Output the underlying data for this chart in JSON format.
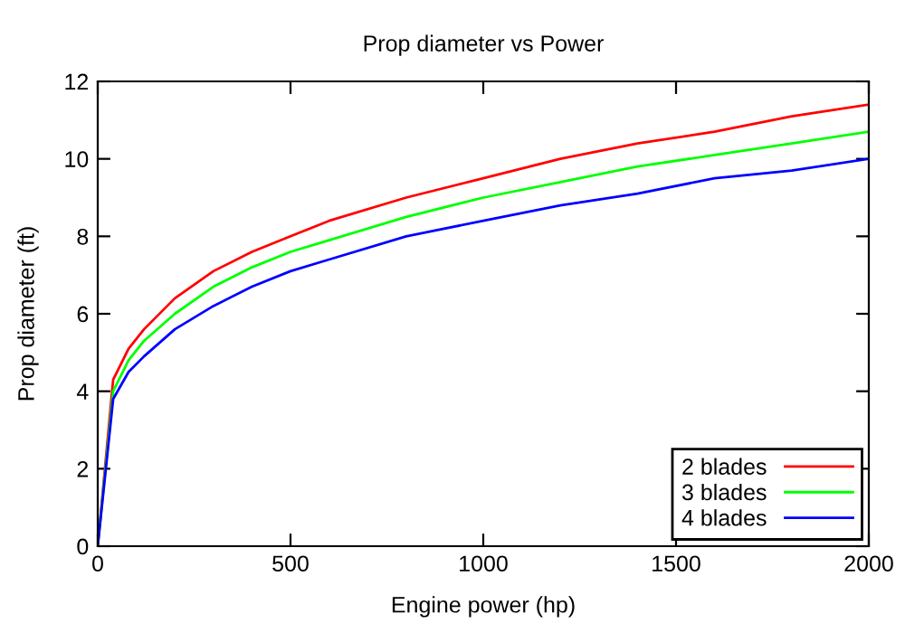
{
  "chart_data": {
    "type": "line",
    "title": "Prop diameter vs Power",
    "xlabel": "Engine power (hp)",
    "ylabel": "Prop diameter (ft)",
    "x": [
      0,
      40,
      80,
      120,
      200,
      300,
      400,
      500,
      600,
      800,
      1000,
      1200,
      1400,
      1600,
      1800,
      2000
    ],
    "series": [
      {
        "name": "2 blades",
        "color": "#ff0000",
        "values": [
          0,
          4.3,
          5.1,
          5.6,
          6.4,
          7.1,
          7.6,
          8.0,
          8.4,
          9.0,
          9.5,
          10.0,
          10.4,
          10.7,
          11.1,
          11.4
        ]
      },
      {
        "name": "3 blades",
        "color": "#00ff00",
        "values": [
          0,
          4.0,
          4.8,
          5.3,
          6.0,
          6.7,
          7.2,
          7.6,
          7.9,
          8.5,
          9.0,
          9.4,
          9.8,
          10.1,
          10.4,
          10.7
        ]
      },
      {
        "name": "4 blades",
        "color": "#0000ff",
        "values": [
          0,
          3.8,
          4.5,
          4.9,
          5.6,
          6.2,
          6.7,
          7.1,
          7.4,
          8.0,
          8.4,
          8.8,
          9.1,
          9.5,
          9.7,
          10.0
        ]
      }
    ],
    "xlim": [
      0,
      2000
    ],
    "xticks": [
      0,
      500,
      1000,
      1500,
      2000
    ],
    "ylim": [
      0,
      12
    ],
    "yticks": [
      0,
      2,
      4,
      6,
      8,
      10,
      12
    ],
    "grid": false,
    "legend": "bottom right",
    "line_style": "solid",
    "marker": "none"
  }
}
